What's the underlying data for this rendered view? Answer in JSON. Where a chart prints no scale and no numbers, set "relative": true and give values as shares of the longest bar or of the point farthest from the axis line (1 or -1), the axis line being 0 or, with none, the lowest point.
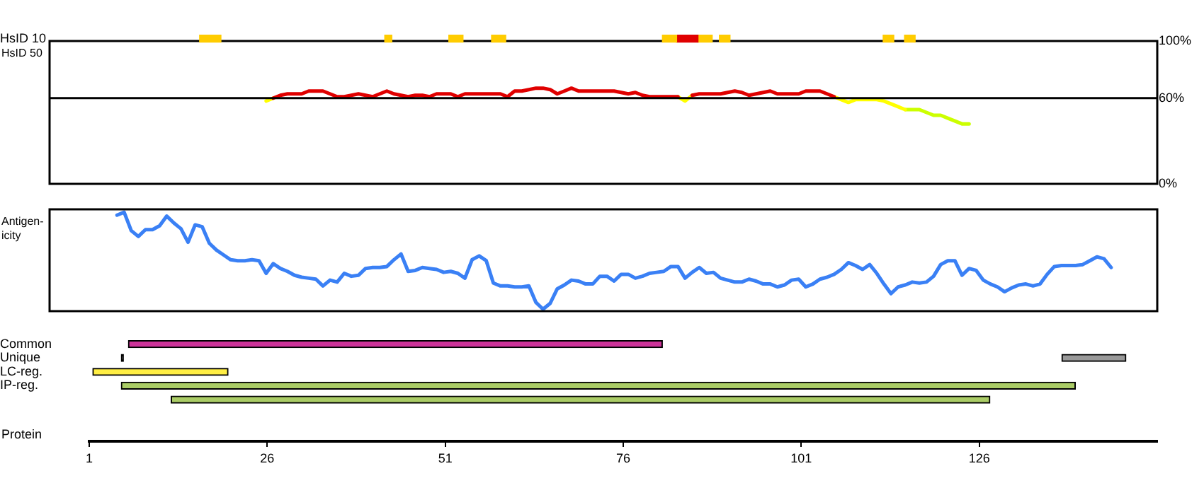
{
  "chart_data": [
    {
      "type": "line",
      "ylabel": "HsID 50",
      "ylim": [
        0,
        100
      ],
      "yticks": [
        {
          "value": 0,
          "label": "0%"
        },
        {
          "value": 60,
          "label": "60%"
        },
        {
          "value": 100,
          "label": "100%"
        }
      ],
      "tick_labels": "y",
      "marker": "none",
      "ref_lines": [
        {
          "axis": "y",
          "value": 60,
          "color": "#000000"
        }
      ],
      "categories": [
        null,
        null,
        null,
        null,
        null,
        null,
        null,
        null,
        null,
        null,
        null,
        null,
        null,
        null,
        null,
        null,
        null,
        null,
        null,
        null,
        null,
        null,
        null,
        null,
        null,
        null,
        null,
        null,
        null,
        null,
        null,
        null,
        null,
        null,
        null,
        null,
        null,
        null,
        null,
        null,
        null,
        null,
        null,
        null,
        null,
        null,
        null,
        null,
        null,
        null,
        null,
        null,
        null,
        null,
        null,
        null,
        null,
        null,
        null,
        null,
        null,
        null,
        null,
        null,
        null,
        null,
        null,
        null,
        null,
        null,
        null,
        null,
        null,
        null,
        null,
        null,
        null,
        null,
        null,
        null,
        null,
        null,
        null,
        null,
        null,
        null,
        null,
        null,
        null,
        null,
        null,
        null,
        null,
        null,
        null,
        null,
        null,
        null,
        null,
        null,
        null,
        null,
        null,
        null,
        null,
        null,
        null,
        null,
        null,
        null,
        null,
        null,
        null,
        null,
        null,
        null,
        null,
        null,
        null,
        null,
        null,
        null,
        null,
        null,
        null,
        null,
        null,
        null,
        null,
        null,
        null,
        null,
        null,
        null,
        null,
        null,
        null,
        null,
        null,
        null,
        null,
        null,
        null,
        null,
        null,
        null,
        null,
        null,
        null,
        null,
        null,
        null,
        null,
        null,
        null,
        null
      ],
      "series": [
        {
          "color": "#e00000",
          "values": [
            null,
            null,
            null,
            null,
            null,
            null,
            null,
            null,
            null,
            null,
            null,
            null,
            null,
            null,
            null,
            null,
            null,
            null,
            null,
            null,
            null,
            null,
            null,
            null,
            null,
            null,
            null,
            null,
            null,
            null,
            null,
            60,
            62,
            63,
            63,
            63,
            65,
            65,
            65,
            63,
            61,
            61,
            62,
            63,
            62,
            61,
            63,
            65,
            63,
            62,
            61,
            62,
            62,
            61,
            63,
            63,
            63,
            61,
            63,
            63,
            63,
            63,
            63,
            63,
            61,
            65,
            65,
            66,
            67,
            67,
            66,
            63,
            65,
            67,
            65,
            65,
            65,
            65,
            65,
            65,
            64,
            63,
            64,
            62,
            61,
            61,
            61,
            61,
            61,
            null,
            62,
            63,
            63,
            63,
            63,
            64,
            65,
            64,
            62,
            63,
            64,
            65,
            63,
            63,
            63,
            63,
            65,
            65,
            65,
            63,
            61,
            null,
            null,
            null,
            null,
            null,
            null,
            null,
            null,
            null,
            null,
            null,
            null,
            null,
            null,
            null,
            null,
            null,
            null,
            null,
            null,
            null,
            null,
            null,
            null,
            null,
            null,
            null,
            null,
            null,
            null,
            null,
            null,
            null,
            null,
            null,
            null,
            null,
            null,
            null,
            null,
            null,
            null,
            null,
            null,
            null
          ]
        },
        {
          "color": "#ffff00",
          "values": [
            null,
            null,
            null,
            null,
            null,
            null,
            null,
            null,
            null,
            null,
            null,
            null,
            null,
            null,
            null,
            null,
            null,
            null,
            null,
            null,
            null,
            null,
            null,
            null,
            null,
            null,
            null,
            null,
            null,
            null,
            58,
            60,
            null,
            null,
            null,
            null,
            null,
            null,
            null,
            null,
            null,
            null,
            null,
            null,
            null,
            null,
            null,
            null,
            null,
            null,
            null,
            null,
            null,
            null,
            null,
            null,
            null,
            null,
            null,
            null,
            null,
            null,
            null,
            null,
            null,
            null,
            null,
            null,
            null,
            null,
            null,
            null,
            null,
            null,
            null,
            null,
            null,
            null,
            null,
            null,
            null,
            null,
            null,
            null,
            null,
            null,
            null,
            null,
            61,
            58,
            62,
            null,
            null,
            null,
            null,
            null,
            null,
            null,
            null,
            null,
            null,
            null,
            null,
            null,
            null,
            null,
            null,
            null,
            null,
            null,
            61,
            59,
            57,
            59,
            59,
            59,
            59,
            58,
            56,
            54,
            52,
            null,
            null,
            null,
            null,
            null,
            null,
            null,
            null,
            null,
            null,
            null,
            null,
            null,
            null,
            null,
            null,
            null,
            null,
            null,
            null,
            null,
            null,
            null,
            null,
            null,
            null,
            null,
            null,
            null,
            null,
            null,
            null,
            null,
            null,
            null
          ]
        },
        {
          "color": "#ccff00",
          "values": [
            null,
            null,
            null,
            null,
            null,
            null,
            null,
            null,
            null,
            null,
            null,
            null,
            null,
            null,
            null,
            null,
            null,
            null,
            null,
            null,
            null,
            null,
            null,
            null,
            null,
            null,
            null,
            null,
            null,
            null,
            null,
            null,
            null,
            null,
            null,
            null,
            null,
            null,
            null,
            null,
            null,
            null,
            null,
            null,
            null,
            null,
            null,
            null,
            null,
            null,
            null,
            null,
            null,
            null,
            null,
            null,
            null,
            null,
            null,
            null,
            null,
            null,
            null,
            null,
            null,
            null,
            null,
            null,
            null,
            null,
            null,
            null,
            null,
            null,
            null,
            null,
            null,
            null,
            null,
            null,
            null,
            null,
            null,
            null,
            null,
            null,
            null,
            null,
            null,
            null,
            null,
            null,
            null,
            null,
            null,
            null,
            null,
            null,
            null,
            null,
            null,
            null,
            null,
            null,
            null,
            null,
            null,
            null,
            null,
            null,
            null,
            null,
            null,
            null,
            null,
            null,
            null,
            null,
            null,
            null,
            52,
            52,
            52,
            50,
            48,
            48,
            46,
            44,
            42,
            42,
            null,
            null,
            null,
            null,
            null,
            null,
            null,
            null,
            null,
            null,
            null,
            null,
            null,
            null,
            null,
            null,
            null,
            null,
            null,
            null,
            null,
            null,
            null,
            null,
            null,
            null
          ]
        }
      ]
    },
    {
      "type": "line",
      "ylabel": "Antigen-\nicity",
      "relative": true,
      "tick_labels": false,
      "marker": "none",
      "color": "#3a80f5",
      "categories": [
        null,
        null,
        null,
        null,
        null,
        null,
        null,
        null,
        null,
        null,
        null,
        null,
        null,
        null,
        null,
        null,
        null,
        null,
        null,
        null,
        null,
        null,
        null,
        null,
        null,
        null,
        null,
        null,
        null,
        null,
        null,
        null,
        null,
        null,
        null,
        null,
        null,
        null,
        null,
        null,
        null,
        null,
        null,
        null,
        null,
        null,
        null,
        null,
        null,
        null,
        null,
        null,
        null,
        null,
        null,
        null,
        null,
        null,
        null,
        null,
        null,
        null,
        null,
        null,
        null,
        null,
        null,
        null,
        null,
        null,
        null,
        null,
        null,
        null,
        null,
        null,
        null,
        null,
        null,
        null,
        null,
        null,
        null,
        null,
        null,
        null,
        null,
        null,
        null,
        null,
        null,
        null,
        null,
        null,
        null,
        null,
        null,
        null,
        null,
        null,
        null,
        null,
        null,
        null,
        null,
        null,
        null,
        null,
        null,
        null,
        null,
        null,
        null,
        null,
        null,
        null,
        null,
        null,
        null,
        null,
        null,
        null,
        null,
        null,
        null,
        null,
        null,
        null,
        null,
        null,
        null,
        null,
        null,
        null,
        null,
        null,
        null,
        null,
        null,
        null,
        null,
        null,
        null,
        null,
        null,
        null,
        null,
        null,
        null,
        null,
        null,
        null,
        null,
        null,
        null,
        null
      ],
      "values": [
        null,
        null,
        null,
        null,
        null,
        null,
        null,
        null,
        null,
        0.97,
        1,
        0.81,
        0.75,
        0.82,
        0.82,
        0.86,
        0.96,
        0.89,
        0.83,
        0.69,
        0.87,
        0.85,
        0.68,
        0.61,
        0.56,
        0.51,
        0.5,
        0.5,
        0.51,
        0.5,
        0.37,
        0.47,
        0.42,
        0.39,
        0.35,
        0.33,
        0.32,
        0.31,
        0.24,
        0.3,
        0.28,
        0.37,
        0.34,
        0.35,
        0.42,
        0.43,
        0.43,
        0.44,
        0.51,
        0.57,
        0.39,
        0.4,
        0.43,
        0.42,
        0.41,
        0.38,
        0.39,
        0.37,
        0.32,
        0.51,
        0.55,
        0.5,
        0.27,
        0.24,
        0.24,
        0.23,
        0.23,
        0.24,
        0.07,
        0,
        0.06,
        0.21,
        0.25,
        0.3,
        0.29,
        0.26,
        0.26,
        0.34,
        0.34,
        0.29,
        0.36,
        0.36,
        0.32,
        0.34,
        0.37,
        0.38,
        0.39,
        0.44,
        0.44,
        0.32,
        0.38,
        0.43,
        0.37,
        0.38,
        0.32,
        0.3,
        0.28,
        0.28,
        0.31,
        0.29,
        0.26,
        0.26,
        0.23,
        0.25,
        0.3,
        0.31,
        0.23,
        0.26,
        0.31,
        0.33,
        0.36,
        0.41,
        0.48,
        0.45,
        0.41,
        0.46,
        0.37,
        0.26,
        0.16,
        0.23,
        0.25,
        0.28,
        0.27,
        0.28,
        0.34,
        0.46,
        0.5,
        0.5,
        0.35,
        0.42,
        0.4,
        0.3,
        0.26,
        0.23,
        0.18,
        0.22,
        0.25,
        0.26,
        0.24,
        0.26,
        0.36,
        0.44,
        0.45,
        0.45,
        0.45,
        0.46,
        0.5,
        0.54,
        0.52,
        0.43,
        null,
        null,
        null,
        null,
        null,
        null
      ]
    },
    {
      "type": "bar",
      "orientation": "horizontal",
      "xlabel": "Protein",
      "xlim": [
        1,
        151
      ],
      "xticks": [
        1,
        26,
        51,
        76,
        101,
        126
      ],
      "categories": [
        "HsID 10",
        null,
        null,
        null,
        null,
        null,
        null,
        null,
        null,
        null,
        null,
        null,
        null,
        null,
        null,
        null,
        null,
        null,
        null,
        null,
        null,
        null,
        "Common",
        "Unique",
        "LC-reg.",
        "IP-reg.",
        null
      ],
      "series": [
        {
          "colors": [
            "#ffcc00",
            null,
            null,
            null,
            null,
            null,
            null,
            null,
            null,
            null,
            null,
            null,
            null,
            null,
            null,
            null,
            null,
            null,
            null,
            null,
            null,
            null,
            "#cc3399",
            "#000000",
            "#ffee44",
            "#aacc66",
            "#aacc66"
          ],
          "base": [
            16.5,
            null,
            null,
            null,
            null,
            null,
            null,
            null,
            null,
            null,
            null,
            null,
            null,
            null,
            null,
            null,
            null,
            null,
            null,
            null,
            null,
            null,
            6.5,
            5.5,
            1.5,
            5.5,
            12.5
          ],
          "values": [
            3,
            null,
            null,
            null,
            null,
            null,
            null,
            null,
            null,
            null,
            null,
            null,
            null,
            null,
            null,
            null,
            null,
            null,
            null,
            null,
            null,
            null,
            75,
            0.3,
            19,
            134,
            115
          ]
        },
        {
          "colors": [
            "#ffcc00",
            null,
            null,
            null,
            null,
            null,
            null,
            null,
            null,
            null,
            null,
            null,
            null,
            null,
            null,
            null,
            null,
            null,
            null,
            null,
            null,
            null,
            null,
            "#999999",
            null,
            null,
            null
          ],
          "base": [
            42.5,
            null,
            null,
            null,
            null,
            null,
            null,
            null,
            null,
            null,
            null,
            null,
            null,
            null,
            null,
            null,
            null,
            null,
            null,
            null,
            null,
            null,
            null,
            137.6,
            null,
            null,
            null
          ],
          "values": [
            1,
            null,
            null,
            null,
            null,
            null,
            null,
            null,
            null,
            null,
            null,
            null,
            null,
            null,
            null,
            null,
            null,
            null,
            null,
            null,
            null,
            null,
            null,
            9,
            null,
            null,
            null
          ]
        },
        {
          "color": "#ffcc00",
          "base": [
            51.5,
            null,
            null,
            null,
            null,
            null,
            null,
            null,
            null,
            null,
            null,
            null,
            null,
            null,
            null,
            null,
            null,
            null,
            null,
            null,
            null,
            null,
            null,
            null,
            null,
            null,
            null
          ],
          "values": [
            2,
            null,
            null,
            null,
            null,
            null,
            null,
            null,
            null,
            null,
            null,
            null,
            null,
            null,
            null,
            null,
            null,
            null,
            null,
            null,
            null,
            null,
            null,
            null,
            null,
            null,
            null
          ]
        },
        {
          "color": "#ffcc00",
          "base": [
            57.5,
            null,
            null,
            null,
            null,
            null,
            null,
            null,
            null,
            null,
            null,
            null,
            null,
            null,
            null,
            null,
            null,
            null,
            null,
            null,
            null,
            null,
            null,
            null,
            null,
            null,
            null
          ],
          "values": [
            2,
            null,
            null,
            null,
            null,
            null,
            null,
            null,
            null,
            null,
            null,
            null,
            null,
            null,
            null,
            null,
            null,
            null,
            null,
            null,
            null,
            null,
            null,
            null,
            null,
            null,
            null
          ]
        },
        {
          "color": "#ffcc00",
          "base": [
            81.5,
            null,
            null,
            null,
            null,
            null,
            null,
            null,
            null,
            null,
            null,
            null,
            null,
            null,
            null,
            null,
            null,
            null,
            null,
            null,
            null,
            null,
            null,
            null,
            null,
            null,
            null
          ],
          "values": [
            2,
            null,
            null,
            null,
            null,
            null,
            null,
            null,
            null,
            null,
            null,
            null,
            null,
            null,
            null,
            null,
            null,
            null,
            null,
            null,
            null,
            null,
            null,
            null,
            null,
            null,
            null
          ]
        },
        {
          "color": "#e00000",
          "base": [
            83.5,
            null,
            null,
            null,
            null,
            null,
            null,
            null,
            null,
            null,
            null,
            null,
            null,
            null,
            null,
            null,
            null,
            null,
            null,
            null,
            null,
            null,
            null,
            null,
            null,
            null,
            null
          ],
          "values": [
            3,
            null,
            null,
            null,
            null,
            null,
            null,
            null,
            null,
            null,
            null,
            null,
            null,
            null,
            null,
            null,
            null,
            null,
            null,
            null,
            null,
            null,
            null,
            null,
            null,
            null,
            null
          ]
        },
        {
          "color": "#ffcc00",
          "base": [
            86.5,
            null,
            null,
            null,
            null,
            null,
            null,
            null,
            null,
            null,
            null,
            null,
            null,
            null,
            null,
            null,
            null,
            null,
            null,
            null,
            null,
            null,
            null,
            null,
            null,
            null,
            null
          ],
          "values": [
            2,
            null,
            null,
            null,
            null,
            null,
            null,
            null,
            null,
            null,
            null,
            null,
            null,
            null,
            null,
            null,
            null,
            null,
            null,
            null,
            null,
            null,
            null,
            null,
            null,
            null,
            null
          ]
        },
        {
          "color": "#ffcc00",
          "base": [
            89.5,
            null,
            null,
            null,
            null,
            null,
            null,
            null,
            null,
            null,
            null,
            null,
            null,
            null,
            null,
            null,
            null,
            null,
            null,
            null,
            null,
            null,
            null,
            null,
            null,
            null,
            null
          ],
          "values": [
            1.5,
            null,
            null,
            null,
            null,
            null,
            null,
            null,
            null,
            null,
            null,
            null,
            null,
            null,
            null,
            null,
            null,
            null,
            null,
            null,
            null,
            null,
            null,
            null,
            null,
            null,
            null
          ]
        },
        {
          "color": "#ffcc00",
          "base": [
            112.5,
            null,
            null,
            null,
            null,
            null,
            null,
            null,
            null,
            null,
            null,
            null,
            null,
            null,
            null,
            null,
            null,
            null,
            null,
            null,
            null,
            null,
            null,
            null,
            null,
            null,
            null
          ],
          "values": [
            1.5,
            null,
            null,
            null,
            null,
            null,
            null,
            null,
            null,
            null,
            null,
            null,
            null,
            null,
            null,
            null,
            null,
            null,
            null,
            null,
            null,
            null,
            null,
            null,
            null,
            null,
            null
          ]
        },
        {
          "color": "#ffcc00",
          "base": [
            115.5,
            null,
            null,
            null,
            null,
            null,
            null,
            null,
            null,
            null,
            null,
            null,
            null,
            null,
            null,
            null,
            null,
            null,
            null,
            null,
            null,
            null,
            null,
            null,
            null,
            null,
            null
          ],
          "values": [
            1.5,
            null,
            null,
            null,
            null,
            null,
            null,
            null,
            null,
            null,
            null,
            null,
            null,
            null,
            null,
            null,
            null,
            null,
            null,
            null,
            null,
            null,
            null,
            null,
            null,
            null,
            null
          ]
        }
      ]
    }
  ]
}
